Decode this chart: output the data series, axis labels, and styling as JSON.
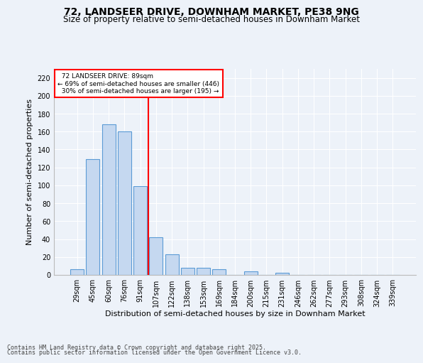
{
  "title": "72, LANDSEER DRIVE, DOWNHAM MARKET, PE38 9NG",
  "subtitle": "Size of property relative to semi-detached houses in Downham Market",
  "xlabel": "Distribution of semi-detached houses by size in Downham Market",
  "ylabel": "Number of semi-detached properties",
  "categories": [
    "29sqm",
    "45sqm",
    "60sqm",
    "76sqm",
    "91sqm",
    "107sqm",
    "122sqm",
    "138sqm",
    "153sqm",
    "169sqm",
    "184sqm",
    "200sqm",
    "215sqm",
    "231sqm",
    "246sqm",
    "262sqm",
    "277sqm",
    "293sqm",
    "308sqm",
    "324sqm",
    "339sqm"
  ],
  "values": [
    6,
    129,
    168,
    160,
    99,
    42,
    23,
    8,
    8,
    6,
    0,
    4,
    0,
    2,
    0,
    0,
    0,
    0,
    0,
    0,
    0
  ],
  "bar_color": "#c5d8f0",
  "bar_edge_color": "#5b9bd5",
  "highlight_line_color": "red",
  "annotation_title": "72 LANDSEER DRIVE: 89sqm",
  "annotation_line1": "← 69% of semi-detached houses are smaller (446)",
  "annotation_line2": "30% of semi-detached houses are larger (195) →",
  "annotation_box_edge_color": "red",
  "ylim": [
    0,
    230
  ],
  "yticks": [
    0,
    20,
    40,
    60,
    80,
    100,
    120,
    140,
    160,
    180,
    200,
    220
  ],
  "footer1": "Contains HM Land Registry data © Crown copyright and database right 2025.",
  "footer2": "Contains public sector information licensed under the Open Government Licence v3.0.",
  "bg_color": "#edf2f9",
  "plot_bg_color": "#edf2f9",
  "grid_color": "#ffffff",
  "title_fontsize": 10,
  "subtitle_fontsize": 8.5,
  "axis_label_fontsize": 8,
  "tick_fontsize": 7,
  "footer_fontsize": 6
}
